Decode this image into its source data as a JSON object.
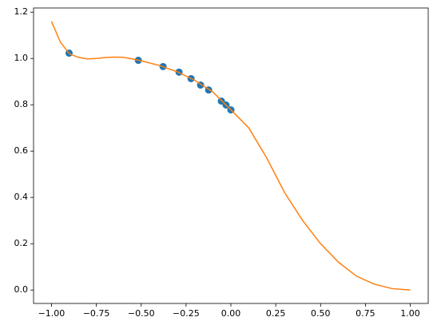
{
  "chart_data": {
    "type": "scatter",
    "xlim": [
      -1.1,
      1.1
    ],
    "ylim": [
      -0.058,
      1.218
    ],
    "xticks": [
      {
        "value": -1.0,
        "label": "−1.00"
      },
      {
        "value": -0.75,
        "label": "−0.75"
      },
      {
        "value": -0.5,
        "label": "−0.50"
      },
      {
        "value": -0.25,
        "label": "−0.25"
      },
      {
        "value": 0,
        "label": "0.00"
      },
      {
        "value": 0.25,
        "label": "0.25"
      },
      {
        "value": 0.5,
        "label": "0.50"
      },
      {
        "value": 0.75,
        "label": "0.75"
      },
      {
        "value": 1.0,
        "label": "1.00"
      }
    ],
    "yticks": [
      {
        "value": 0,
        "label": "0.0"
      },
      {
        "value": 0.2,
        "label": "0.2"
      },
      {
        "value": 0.4,
        "label": "0.4"
      },
      {
        "value": 0.6,
        "label": "0.6"
      },
      {
        "value": 0.8,
        "label": "0.8"
      },
      {
        "value": 1.0,
        "label": "1.0"
      },
      {
        "value": 1.2,
        "label": "1.2"
      }
    ],
    "series": [
      {
        "mode": "markers",
        "color": "#1f77b4",
        "x": [
          -0.902,
          -0.516,
          -0.378,
          -0.289,
          -0.222,
          -0.169,
          -0.124,
          -0.053,
          -0.027,
          0.0
        ],
        "values": [
          1.023,
          0.992,
          0.965,
          0.941,
          0.913,
          0.885,
          0.864,
          0.816,
          0.799,
          0.778
        ]
      },
      {
        "mode": "line",
        "color": "#ff7f0e",
        "x": [
          -1.0,
          -0.95,
          -0.9,
          -0.85,
          -0.8,
          -0.75,
          -0.7,
          -0.65,
          -0.6,
          -0.55,
          -0.5,
          -0.4,
          -0.3,
          -0.2,
          -0.1,
          0.0,
          0.1,
          0.2,
          0.3,
          0.4,
          0.5,
          0.6,
          0.7,
          0.8,
          0.9,
          1.0
        ],
        "values": [
          1.16,
          1.07,
          1.02,
          1.005,
          0.998,
          1.0,
          1.004,
          1.006,
          1.005,
          0.998,
          0.99,
          0.97,
          0.943,
          0.905,
          0.855,
          0.778,
          0.7,
          0.57,
          0.42,
          0.3,
          0.2,
          0.12,
          0.06,
          0.025,
          0.006,
          0.0
        ]
      }
    ]
  }
}
